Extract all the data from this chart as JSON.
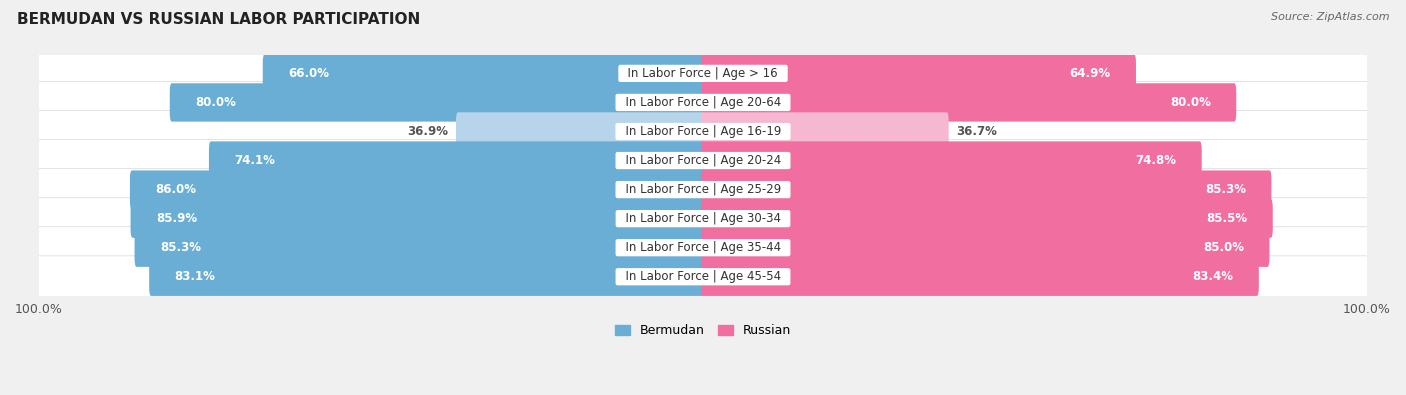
{
  "title": "BERMUDAN VS RUSSIAN LABOR PARTICIPATION",
  "source": "Source: ZipAtlas.com",
  "categories": [
    "In Labor Force | Age > 16",
    "In Labor Force | Age 20-64",
    "In Labor Force | Age 16-19",
    "In Labor Force | Age 20-24",
    "In Labor Force | Age 25-29",
    "In Labor Force | Age 30-34",
    "In Labor Force | Age 35-44",
    "In Labor Force | Age 45-54"
  ],
  "bermudan": [
    66.0,
    80.0,
    36.9,
    74.1,
    86.0,
    85.9,
    85.3,
    83.1
  ],
  "russian": [
    64.9,
    80.0,
    36.7,
    74.8,
    85.3,
    85.5,
    85.0,
    83.4
  ],
  "bermudan_color_full": "#6aaed6",
  "bermudan_color_light": "#b8d4ea",
  "russian_color_full": "#f06fa0",
  "russian_color_light": "#f5b8d0",
  "label_color_full": "#ffffff",
  "label_color_light": "#555555",
  "bg_color": "#f0f0f0",
  "bar_bg_color": "#ffffff",
  "row_shadow_color": "#d8d8d8",
  "max_val": 100.0,
  "bar_height": 0.72,
  "threshold": 50.0,
  "legend_bermudan": "Bermudan",
  "legend_russian": "Russian",
  "cat_label_fontsize": 8.5,
  "val_label_fontsize": 8.5
}
